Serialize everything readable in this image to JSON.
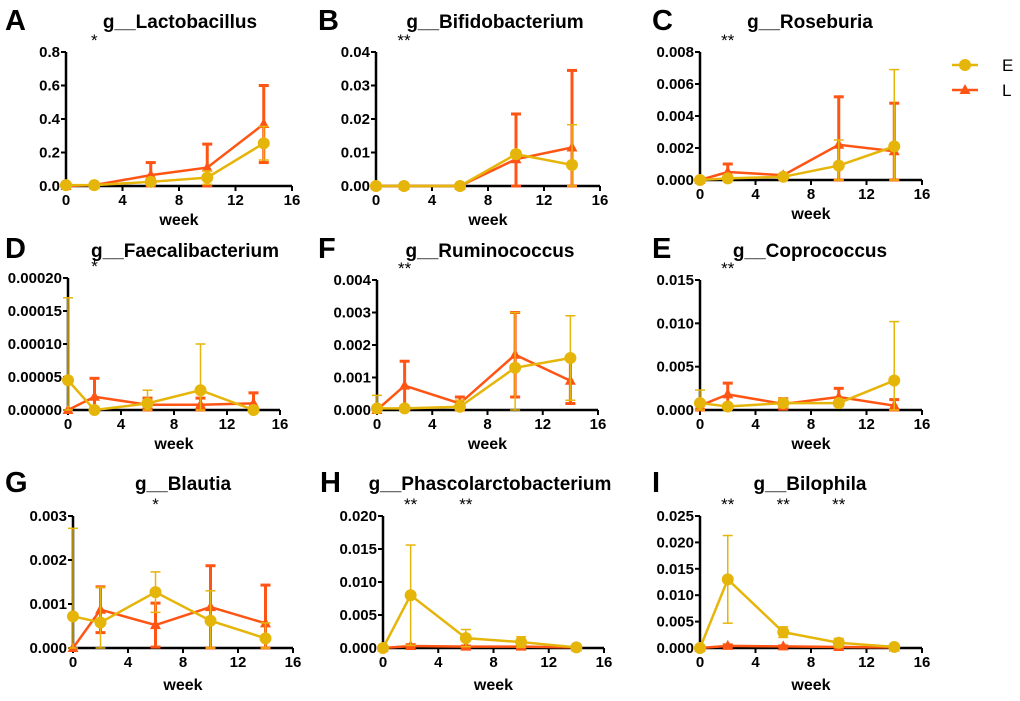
{
  "colors": {
    "E": "#E6B50A",
    "L": "#FF5514",
    "axis": "#000000"
  },
  "legend": [
    {
      "name": "E",
      "marker": "circle"
    },
    {
      "name": "L",
      "marker": "triangle"
    }
  ],
  "chart_data": [
    {
      "letter": "A",
      "type": "line",
      "title": "g__Lactobacillus",
      "xlabel": "week",
      "x": [
        0,
        2,
        6,
        10,
        14
      ],
      "xlim": [
        0,
        16
      ],
      "xticks": [
        "0",
        "4",
        "8",
        "12",
        "16"
      ],
      "ylim": [
        0,
        0.8
      ],
      "yticks": [
        "0.0",
        "0.2",
        "0.4",
        "0.6",
        "0.8"
      ],
      "stars": [
        {
          "x": 2,
          "label": "*"
        }
      ],
      "series": [
        {
          "name": "E",
          "values": [
            0.005,
            0.005,
            0.025,
            0.05,
            0.255
          ],
          "sd": [
            0,
            0,
            0.02,
            0.04,
            0.1
          ]
        },
        {
          "name": "L",
          "values": [
            0,
            0.005,
            0.065,
            0.11,
            0.37
          ],
          "sd": [
            0,
            0,
            0.075,
            0.14,
            0.23
          ]
        }
      ]
    },
    {
      "letter": "B",
      "type": "line",
      "title": "g__Bifidobacterium",
      "xlabel": "week",
      "x": [
        0,
        2,
        6,
        10,
        14
      ],
      "xlim": [
        0,
        16
      ],
      "xticks": [
        "0",
        "4",
        "8",
        "12",
        "16"
      ],
      "ylim": [
        0,
        0.04
      ],
      "yticks": [
        "0.00",
        "0.01",
        "0.02",
        "0.03",
        "0.04"
      ],
      "stars": [
        {
          "x": 2,
          "label": "**"
        }
      ],
      "series": [
        {
          "name": "E",
          "values": [
            0,
            0,
            0,
            0.0095,
            0.0063
          ],
          "sd": [
            0,
            0,
            0,
            0.001,
            0.012
          ]
        },
        {
          "name": "L",
          "values": [
            0,
            0,
            0,
            0.008,
            0.0115
          ],
          "sd": [
            0,
            0,
            0,
            0.0135,
            0.023
          ]
        }
      ]
    },
    {
      "letter": "C",
      "type": "line",
      "title": "g__Roseburia",
      "xlabel": "week",
      "x": [
        0,
        2,
        6,
        10,
        14
      ],
      "xlim": [
        0,
        16
      ],
      "xticks": [
        "0",
        "4",
        "8",
        "12",
        "16"
      ],
      "ylim": [
        0,
        0.008
      ],
      "yticks": [
        "0.000",
        "0.002",
        "0.004",
        "0.006",
        "0.008"
      ],
      "stars": [
        {
          "x": 2,
          "label": "**"
        }
      ],
      "series": [
        {
          "name": "E",
          "values": [
            0,
            0.0001,
            0.0002,
            0.0009,
            0.0021
          ],
          "sd": [
            0,
            0,
            0,
            0.0016,
            0.0048
          ]
        },
        {
          "name": "L",
          "values": [
            0,
            0.0005,
            0.0003,
            0.0022,
            0.0018
          ],
          "sd": [
            0,
            0.0005,
            0,
            0.003,
            0.003
          ]
        }
      ]
    },
    {
      "letter": "D",
      "type": "line",
      "title": "g__Faecalibacterium",
      "xlabel": "week",
      "x": [
        0,
        2,
        6,
        10,
        14
      ],
      "xlim": [
        0,
        16
      ],
      "xticks": [
        "0",
        "4",
        "8",
        "12",
        "16"
      ],
      "ylim": [
        0,
        0.0002
      ],
      "yticks": [
        "0.00000",
        "0.00005",
        "0.00010",
        "0.00015",
        "0.00020"
      ],
      "stars": [
        {
          "x": 2,
          "label": "*"
        }
      ],
      "series": [
        {
          "name": "E",
          "values": [
            4.5e-05,
            0,
            1e-05,
            3e-05,
            0
          ],
          "sd": [
            0.000125,
            0,
            2e-05,
            7e-05,
            0
          ]
        },
        {
          "name": "L",
          "values": [
            0,
            2e-05,
            8e-06,
            8e-06,
            1e-05
          ],
          "sd": [
            0,
            2.8e-05,
            1e-05,
            1e-05,
            1.6e-05
          ]
        }
      ]
    },
    {
      "letter": "F",
      "type": "line",
      "title": "g__Ruminococcus",
      "xlabel": "week",
      "x": [
        0,
        2,
        6,
        10,
        14
      ],
      "xlim": [
        0,
        16
      ],
      "xticks": [
        "0",
        "4",
        "8",
        "12",
        "16"
      ],
      "ylim": [
        0,
        0.004
      ],
      "yticks": [
        "0.000",
        "0.001",
        "0.002",
        "0.003",
        "0.004"
      ],
      "stars": [
        {
          "x": 2,
          "label": "**"
        }
      ],
      "series": [
        {
          "name": "E",
          "values": [
            5e-05,
            5e-05,
            0.0001,
            0.0013,
            0.0016
          ],
          "sd": [
            0.0004,
            0,
            0.0002,
            0.0017,
            0.0013
          ]
        },
        {
          "name": "L",
          "values": [
            0,
            0.00075,
            0.0002,
            0.0017,
            0.0009
          ],
          "sd": [
            0,
            0.00075,
            0.0002,
            0.0013,
            0.0007
          ]
        }
      ]
    },
    {
      "letter": "E",
      "type": "line",
      "title": "g__Coprococcus",
      "xlabel": "week",
      "x": [
        0,
        2,
        6,
        10,
        14
      ],
      "xlim": [
        0,
        16
      ],
      "xticks": [
        "0",
        "4",
        "8",
        "12",
        "16"
      ],
      "ylim": [
        0,
        0.015
      ],
      "yticks": [
        "0.000",
        "0.005",
        "0.010",
        "0.015"
      ],
      "stars": [
        {
          "x": 2,
          "label": "**"
        }
      ],
      "series": [
        {
          "name": "E",
          "values": [
            0.0008,
            0.0004,
            0.0008,
            0.0008,
            0.0034
          ],
          "sd": [
            0.0015,
            0.0003,
            0.0005,
            0.0003,
            0.0068
          ]
        },
        {
          "name": "L",
          "values": [
            0.0005,
            0.0018,
            0.0007,
            0.0015,
            0.0005
          ],
          "sd": [
            0.0005,
            0.0013,
            0.0006,
            0.001,
            0.0007
          ]
        }
      ]
    },
    {
      "letter": "G",
      "type": "line",
      "title": "g__Blautia",
      "xlabel": "week",
      "x": [
        0,
        2,
        6,
        10,
        14
      ],
      "xlim": [
        0,
        16
      ],
      "xticks": [
        "0",
        "4",
        "8",
        "12",
        "16"
      ],
      "ylim": [
        0,
        0.003
      ],
      "yticks": [
        "0.000",
        "0.001",
        "0.002",
        "0.003"
      ],
      "stars": [
        {
          "x": 6,
          "label": "*"
        }
      ],
      "series": [
        {
          "name": "E",
          "values": [
            0.00072,
            0.00058,
            0.00127,
            0.00062,
            0.00022
          ],
          "sd": [
            0.002,
            0.0008,
            0.00046,
            0.00068,
            0.00035
          ]
        },
        {
          "name": "L",
          "values": [
            0,
            0.00087,
            0.00052,
            0.00093,
            0.00056
          ],
          "sd": [
            0,
            0.00052,
            0.0005,
            0.00094,
            0.00087
          ]
        }
      ]
    },
    {
      "letter": "H",
      "type": "line",
      "title": "g__Phascolarctobacterium",
      "xlabel": "week",
      "x": [
        0,
        2,
        6,
        10,
        14
      ],
      "xlim": [
        0,
        16
      ],
      "xticks": [
        "0",
        "4",
        "8",
        "12",
        "16"
      ],
      "ylim": [
        0,
        0.02
      ],
      "yticks": [
        "0.000",
        "0.005",
        "0.010",
        "0.015",
        "0.020"
      ],
      "stars": [
        {
          "x": 2,
          "label": "**"
        },
        {
          "x": 6,
          "label": "**"
        }
      ],
      "series": [
        {
          "name": "E",
          "values": [
            0,
            0.008,
            0.0015,
            0.0009,
            0.0001
          ],
          "sd": [
            0,
            0.0076,
            0.0013,
            0.0008,
            0
          ]
        },
        {
          "name": "L",
          "values": [
            0,
            0.0003,
            0.0002,
            0.0002,
            0.0001
          ],
          "sd": [
            0,
            0.0002,
            0.0001,
            0.0001,
            0
          ]
        }
      ]
    },
    {
      "letter": "I",
      "type": "line",
      "title": "g__Bilophila",
      "xlabel": "week",
      "x": [
        0,
        2,
        6,
        10,
        14
      ],
      "xlim": [
        0,
        16
      ],
      "xticks": [
        "0",
        "4",
        "8",
        "12",
        "16"
      ],
      "ylim": [
        0,
        0.025
      ],
      "yticks": [
        "0.000",
        "0.005",
        "0.010",
        "0.015",
        "0.020",
        "0.025"
      ],
      "stars": [
        {
          "x": 2,
          "label": "**"
        },
        {
          "x": 6,
          "label": "**"
        },
        {
          "x": 10,
          "label": "**"
        }
      ],
      "series": [
        {
          "name": "E",
          "values": [
            0,
            0.013,
            0.003,
            0.001,
            0.0002
          ],
          "sd": [
            0,
            0.0083,
            0.001,
            0.0008,
            0
          ]
        },
        {
          "name": "L",
          "values": [
            0,
            0.0004,
            0.0003,
            0.0002,
            0.0001
          ],
          "sd": [
            0,
            0.0002,
            0.0001,
            0.0001,
            0
          ]
        }
      ]
    }
  ]
}
